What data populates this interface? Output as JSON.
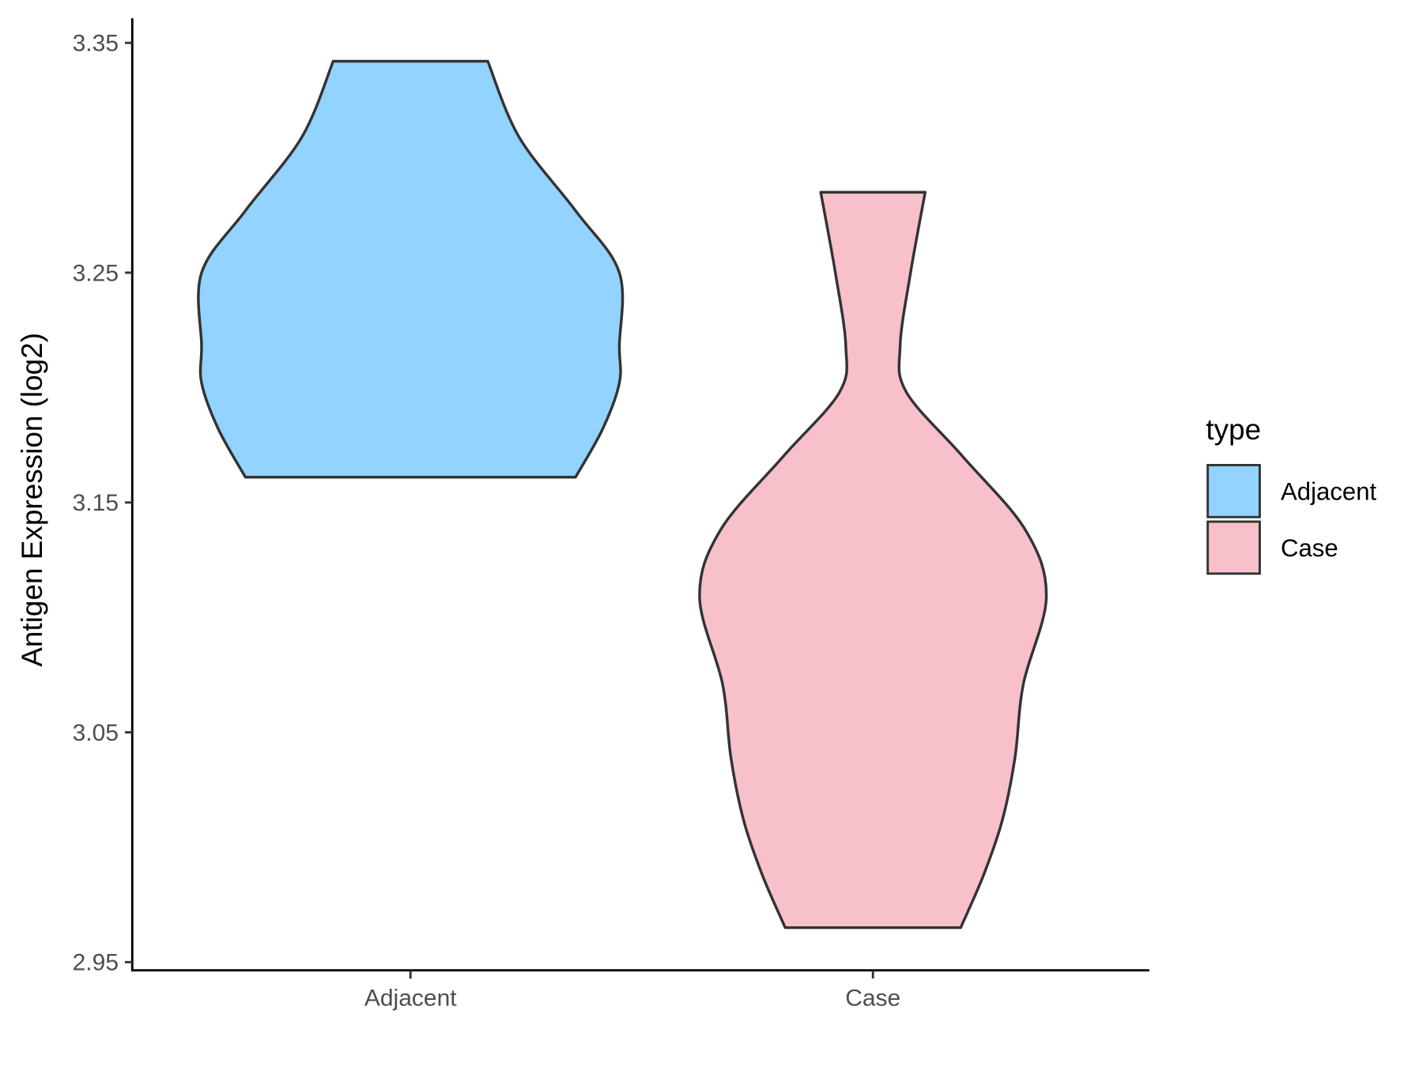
{
  "chart_data": {
    "type": "violin",
    "title": "",
    "xlabel": "",
    "ylabel": "Antigen Expression (log2)",
    "ylim": [
      2.945,
      3.36
    ],
    "yticks": [
      "2.95",
      "3.05",
      "3.15",
      "3.25",
      "3.35"
    ],
    "categories": [
      "Adjacent",
      "Case"
    ],
    "grid": false,
    "legend": {
      "title": "type",
      "placement": "right",
      "entries": [
        "Adjacent",
        "Case"
      ]
    },
    "series": [
      {
        "name": "Adjacent",
        "color": "#92D3FF",
        "min": 3.161,
        "max": 3.342,
        "profile": [
          [
            3.342,
            0.37
          ],
          [
            3.309,
            0.52
          ],
          [
            3.277,
            0.79
          ],
          [
            3.25,
            1.0
          ],
          [
            3.218,
            1.0
          ],
          [
            3.202,
            1.0
          ],
          [
            3.182,
            0.92
          ],
          [
            3.161,
            0.79
          ]
        ]
      },
      {
        "name": "Case",
        "color": "#F8C0CB",
        "min": 2.965,
        "max": 3.285,
        "profile": [
          [
            3.285,
            0.25
          ],
          [
            3.25,
            0.18
          ],
          [
            3.218,
            0.13
          ],
          [
            3.198,
            0.16
          ],
          [
            3.17,
            0.43
          ],
          [
            3.138,
            0.73
          ],
          [
            3.109,
            0.83
          ],
          [
            3.071,
            0.72
          ],
          [
            3.039,
            0.68
          ],
          [
            3.012,
            0.62
          ],
          [
            2.988,
            0.53
          ],
          [
            2.965,
            0.42
          ]
        ]
      }
    ],
    "outline_color": "#333333"
  }
}
